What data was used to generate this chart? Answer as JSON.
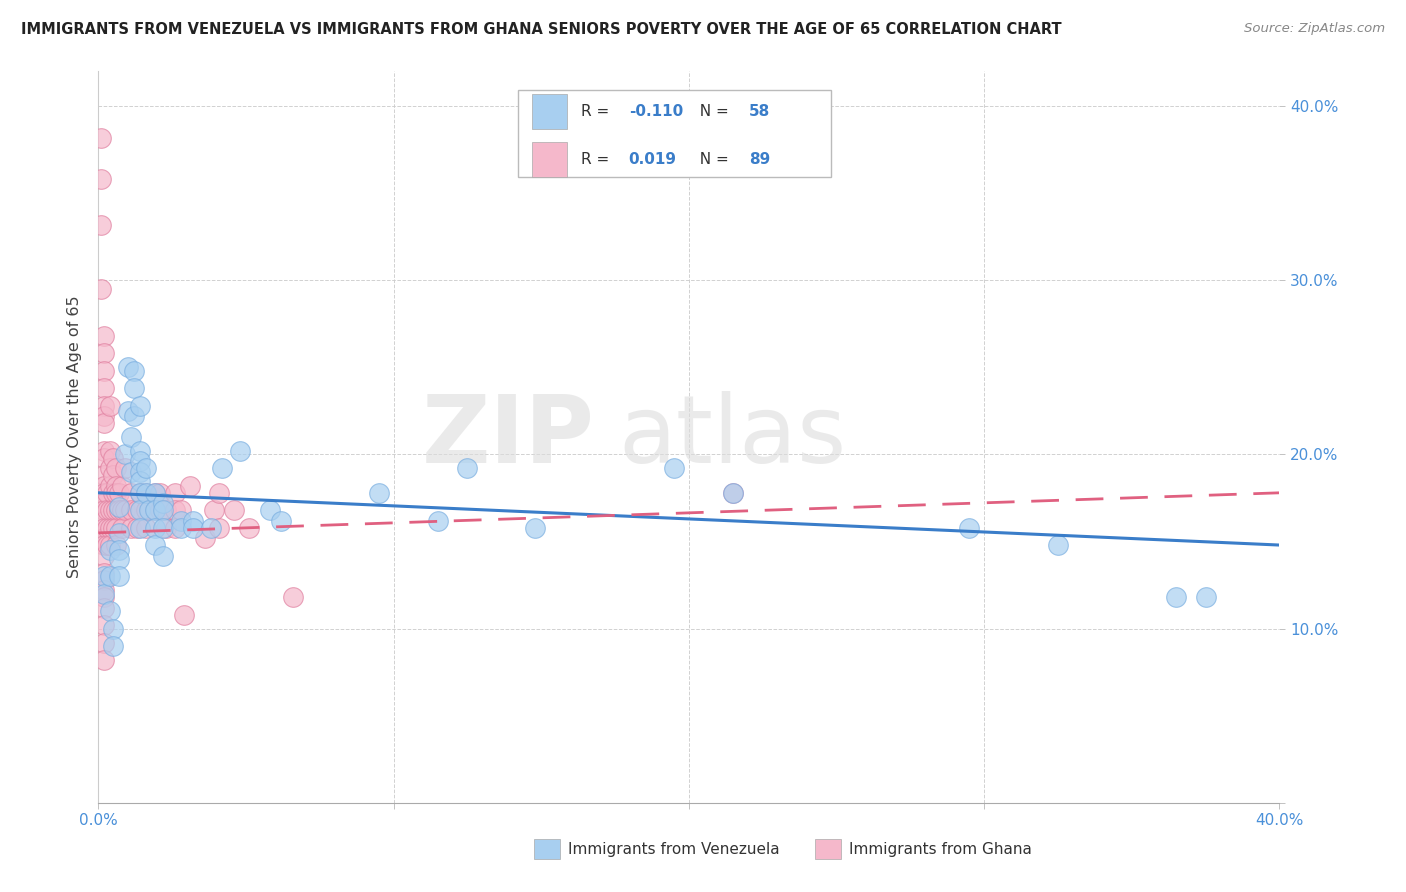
{
  "title": "IMMIGRANTS FROM VENEZUELA VS IMMIGRANTS FROM GHANA SENIORS POVERTY OVER THE AGE OF 65 CORRELATION CHART",
  "source": "Source: ZipAtlas.com",
  "ylabel": "Seniors Poverty Over the Age of 65",
  "xlim": [
    0.0,
    0.4
  ],
  "ylim": [
    0.0,
    0.42
  ],
  "venezuela_color": "#a8cff0",
  "venezuela_edge": "#7aaee0",
  "ghana_color": "#f5b8cb",
  "ghana_edge": "#e080a0",
  "venezuela_R": -0.11,
  "venezuela_N": 58,
  "ghana_R": 0.019,
  "ghana_N": 89,
  "legend_label_venezuela": "Immigrants from Venezuela",
  "legend_label_ghana": "Immigrants from Ghana",
  "watermark1": "ZIP",
  "watermark2": "atlas",
  "line_blue": "#3a7dc9",
  "line_pink": "#e06080",
  "tick_color": "#4a90d9",
  "venezuela_scatter": [
    [
      0.002,
      0.13
    ],
    [
      0.002,
      0.12
    ],
    [
      0.004,
      0.145
    ],
    [
      0.004,
      0.13
    ],
    [
      0.004,
      0.11
    ],
    [
      0.005,
      0.1
    ],
    [
      0.005,
      0.09
    ],
    [
      0.007,
      0.17
    ],
    [
      0.007,
      0.155
    ],
    [
      0.007,
      0.145
    ],
    [
      0.007,
      0.14
    ],
    [
      0.007,
      0.13
    ],
    [
      0.009,
      0.2
    ],
    [
      0.01,
      0.25
    ],
    [
      0.01,
      0.225
    ],
    [
      0.011,
      0.21
    ],
    [
      0.011,
      0.19
    ],
    [
      0.012,
      0.248
    ],
    [
      0.012,
      0.238
    ],
    [
      0.012,
      0.222
    ],
    [
      0.014,
      0.228
    ],
    [
      0.014,
      0.202
    ],
    [
      0.014,
      0.196
    ],
    [
      0.014,
      0.19
    ],
    [
      0.014,
      0.185
    ],
    [
      0.014,
      0.178
    ],
    [
      0.014,
      0.168
    ],
    [
      0.014,
      0.158
    ],
    [
      0.016,
      0.192
    ],
    [
      0.016,
      0.178
    ],
    [
      0.017,
      0.168
    ],
    [
      0.019,
      0.178
    ],
    [
      0.019,
      0.168
    ],
    [
      0.019,
      0.158
    ],
    [
      0.019,
      0.148
    ],
    [
      0.022,
      0.172
    ],
    [
      0.022,
      0.168
    ],
    [
      0.022,
      0.158
    ],
    [
      0.022,
      0.142
    ],
    [
      0.028,
      0.162
    ],
    [
      0.028,
      0.158
    ],
    [
      0.032,
      0.162
    ],
    [
      0.032,
      0.158
    ],
    [
      0.038,
      0.158
    ],
    [
      0.042,
      0.192
    ],
    [
      0.048,
      0.202
    ],
    [
      0.058,
      0.168
    ],
    [
      0.062,
      0.162
    ],
    [
      0.095,
      0.178
    ],
    [
      0.115,
      0.162
    ],
    [
      0.125,
      0.192
    ],
    [
      0.148,
      0.158
    ],
    [
      0.195,
      0.192
    ],
    [
      0.215,
      0.178
    ],
    [
      0.295,
      0.158
    ],
    [
      0.325,
      0.148
    ],
    [
      0.365,
      0.118
    ],
    [
      0.375,
      0.118
    ]
  ],
  "ghana_scatter": [
    [
      0.001,
      0.382
    ],
    [
      0.001,
      0.358
    ],
    [
      0.001,
      0.332
    ],
    [
      0.001,
      0.295
    ],
    [
      0.002,
      0.268
    ],
    [
      0.002,
      0.258
    ],
    [
      0.002,
      0.248
    ],
    [
      0.002,
      0.238
    ],
    [
      0.002,
      0.228
    ],
    [
      0.002,
      0.222
    ],
    [
      0.002,
      0.218
    ],
    [
      0.002,
      0.202
    ],
    [
      0.002,
      0.198
    ],
    [
      0.002,
      0.188
    ],
    [
      0.002,
      0.182
    ],
    [
      0.002,
      0.178
    ],
    [
      0.002,
      0.172
    ],
    [
      0.002,
      0.168
    ],
    [
      0.002,
      0.162
    ],
    [
      0.002,
      0.158
    ],
    [
      0.002,
      0.152
    ],
    [
      0.002,
      0.148
    ],
    [
      0.002,
      0.142
    ],
    [
      0.002,
      0.132
    ],
    [
      0.002,
      0.128
    ],
    [
      0.002,
      0.122
    ],
    [
      0.002,
      0.118
    ],
    [
      0.002,
      0.112
    ],
    [
      0.002,
      0.102
    ],
    [
      0.002,
      0.092
    ],
    [
      0.002,
      0.082
    ],
    [
      0.003,
      0.178
    ],
    [
      0.003,
      0.168
    ],
    [
      0.003,
      0.158
    ],
    [
      0.003,
      0.148
    ],
    [
      0.004,
      0.228
    ],
    [
      0.004,
      0.202
    ],
    [
      0.004,
      0.192
    ],
    [
      0.004,
      0.182
    ],
    [
      0.004,
      0.168
    ],
    [
      0.004,
      0.158
    ],
    [
      0.004,
      0.148
    ],
    [
      0.005,
      0.198
    ],
    [
      0.005,
      0.188
    ],
    [
      0.005,
      0.178
    ],
    [
      0.005,
      0.168
    ],
    [
      0.005,
      0.158
    ],
    [
      0.006,
      0.192
    ],
    [
      0.006,
      0.182
    ],
    [
      0.006,
      0.178
    ],
    [
      0.006,
      0.168
    ],
    [
      0.006,
      0.158
    ],
    [
      0.006,
      0.148
    ],
    [
      0.007,
      0.178
    ],
    [
      0.007,
      0.168
    ],
    [
      0.008,
      0.182
    ],
    [
      0.008,
      0.168
    ],
    [
      0.008,
      0.158
    ],
    [
      0.009,
      0.192
    ],
    [
      0.009,
      0.168
    ],
    [
      0.011,
      0.178
    ],
    [
      0.011,
      0.168
    ],
    [
      0.011,
      0.158
    ],
    [
      0.013,
      0.168
    ],
    [
      0.013,
      0.158
    ],
    [
      0.014,
      0.178
    ],
    [
      0.016,
      0.178
    ],
    [
      0.016,
      0.168
    ],
    [
      0.016,
      0.158
    ],
    [
      0.019,
      0.178
    ],
    [
      0.019,
      0.168
    ],
    [
      0.021,
      0.178
    ],
    [
      0.021,
      0.168
    ],
    [
      0.023,
      0.168
    ],
    [
      0.023,
      0.158
    ],
    [
      0.026,
      0.178
    ],
    [
      0.026,
      0.168
    ],
    [
      0.026,
      0.158
    ],
    [
      0.028,
      0.168
    ],
    [
      0.029,
      0.108
    ],
    [
      0.031,
      0.182
    ],
    [
      0.036,
      0.152
    ],
    [
      0.039,
      0.168
    ],
    [
      0.041,
      0.178
    ],
    [
      0.041,
      0.158
    ],
    [
      0.046,
      0.168
    ],
    [
      0.051,
      0.158
    ],
    [
      0.066,
      0.118
    ],
    [
      0.215,
      0.178
    ]
  ],
  "venezuela_line_x": [
    0.0,
    0.4
  ],
  "venezuela_line_y": [
    0.178,
    0.148
  ],
  "ghana_line_x": [
    0.0,
    0.4
  ],
  "ghana_line_y": [
    0.155,
    0.178
  ]
}
